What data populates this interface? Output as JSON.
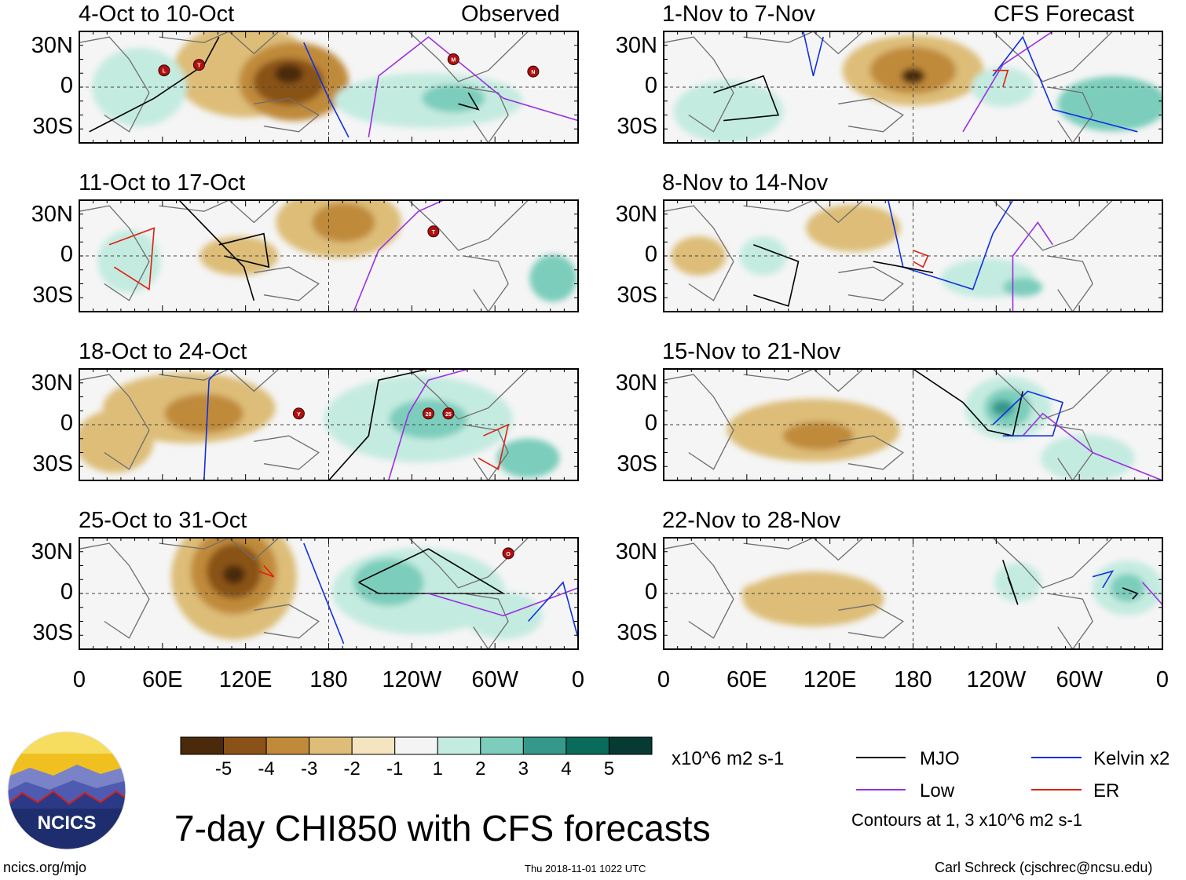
{
  "panels_observed": [
    {
      "period": "4-Oct to 10-Oct",
      "tag": "Observed"
    },
    {
      "period": "11-Oct to 17-Oct",
      "tag": ""
    },
    {
      "period": "18-Oct to 24-Oct",
      "tag": ""
    },
    {
      "period": "25-Oct to 31-Oct",
      "tag": ""
    }
  ],
  "panels_forecast": [
    {
      "period": "1-Nov to 7-Nov",
      "tag": "CFS Forecast"
    },
    {
      "period": "8-Nov to 14-Nov",
      "tag": ""
    },
    {
      "period": "15-Nov to 21-Nov",
      "tag": ""
    },
    {
      "period": "22-Nov to 28-Nov",
      "tag": ""
    }
  ],
  "lat_labels": [
    "30N",
    "0",
    "30S"
  ],
  "lon_labels": [
    "0",
    "60E",
    "120E",
    "180",
    "120W",
    "60W",
    "0"
  ],
  "storm_markers": [
    {
      "panel": 0,
      "letter": "L"
    },
    {
      "panel": 0,
      "letter": "T"
    },
    {
      "panel": 0,
      "letter": "M"
    },
    {
      "panel": 0,
      "letter": "N"
    },
    {
      "panel": 1,
      "letter": "T"
    },
    {
      "panel": 2,
      "letter": "Y"
    },
    {
      "panel": 2,
      "letter": "20"
    },
    {
      "panel": 2,
      "letter": "25"
    },
    {
      "panel": 3,
      "letter": "O"
    }
  ],
  "colorbar": {
    "ticks": [
      "-5",
      "-4",
      "-3",
      "-2",
      "-1",
      "1",
      "2",
      "3",
      "4",
      "5"
    ],
    "colors": [
      "#4a2a0a",
      "#8a5218",
      "#c08a3a",
      "#ddbd78",
      "#f4e5c0",
      "#f4f4f4",
      "#c4ebe0",
      "#7ccdbc",
      "#35988a",
      "#0a6a5c",
      "#073a33"
    ],
    "unit": "x10^6 m2 s-1"
  },
  "legend": {
    "items": [
      {
        "label": "MJO",
        "color": "#000000"
      },
      {
        "label": "Kelvin x2",
        "color": "#1030e0"
      },
      {
        "label": "Low",
        "color": "#9b30e0"
      },
      {
        "label": "ER",
        "color": "#e02010"
      }
    ],
    "note": "Contours at 1, 3 x10^6 m2 s-1"
  },
  "main_title": "7-day CHI850 with CFS forecasts",
  "logo_text": "NCICS",
  "footer": {
    "url": "ncics.org/mjo",
    "timestamp": "Thu 2018-11-01 1022 UTC",
    "credit": "Carl Schreck (cjschrec@ncsu.edu)"
  },
  "chart_data": {
    "type": "heatmap",
    "title": "7-day CHI850 with CFS forecasts",
    "variable": "CHI850 (850-hPa velocity potential) anomaly",
    "unit": "x10^6 m2 s-1",
    "color_levels": [
      -5,
      -4,
      -3,
      -2,
      -1,
      1,
      2,
      3,
      4,
      5
    ],
    "xlim": [
      0,
      360
    ],
    "ylim": [
      -40,
      40
    ],
    "contours": {
      "levels": [
        1,
        3
      ],
      "unit": "x10^6 m2 s-1"
    }
  }
}
